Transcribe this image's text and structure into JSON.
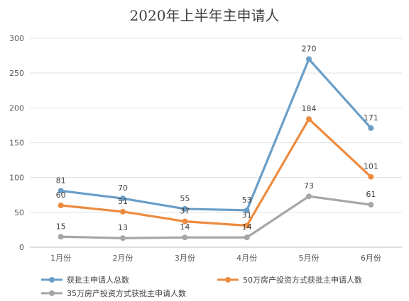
{
  "chart_data": {
    "type": "line",
    "title": "2020年上半年主申请人",
    "categories": [
      "1月份",
      "2月份",
      "3月份",
      "4月份",
      "5月份",
      "6月份"
    ],
    "ylim": [
      0,
      300
    ],
    "yticks": [
      0,
      50,
      100,
      150,
      200,
      250,
      300
    ],
    "grid": true,
    "legend_position": "bottom",
    "series": [
      {
        "name": "获批主申请人总数",
        "values": [
          81,
          70,
          55,
          53,
          270,
          171
        ],
        "color": "#6a9ec7"
      },
      {
        "name": "50万房产投资方式获批主申请人数",
        "values": [
          60,
          51,
          37,
          31,
          184,
          101
        ],
        "color": "#ed8b3f"
      },
      {
        "name": "35万房产投资方式获批主申请人数",
        "values": [
          15,
          13,
          14,
          14,
          73,
          61
        ],
        "color": "#a6a6a6"
      }
    ]
  }
}
